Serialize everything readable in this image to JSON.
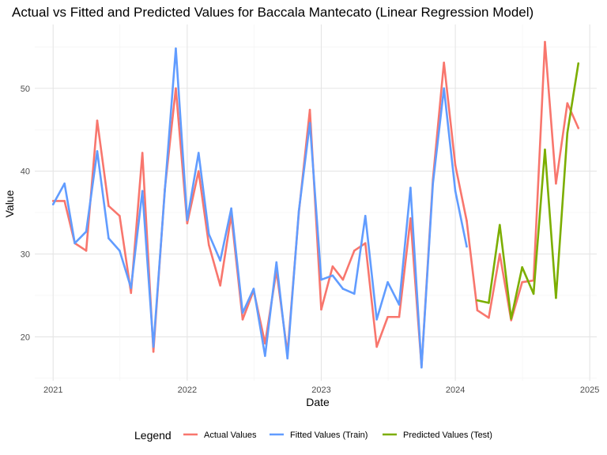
{
  "chart_data": {
    "type": "line",
    "title": "Actual vs Fitted and Predicted Values for Baccala Mantecato (Linear Regression Model)",
    "xlabel": "Date",
    "ylabel": "Value",
    "x_ticks": [
      "2021",
      "2022",
      "2023",
      "2024",
      "2025"
    ],
    "y_ticks": [
      20,
      30,
      40,
      50
    ],
    "xlim": [
      "2020-11-12",
      "2025-01-20"
    ],
    "ylim": [
      14.7,
      57.7
    ],
    "grid": true,
    "legend": {
      "title": "Legend",
      "position": "bottom"
    },
    "series": [
      {
        "name": "Actual Values",
        "color": "#F8766D",
        "x": [
          "2021-01-01",
          "2021-02-01",
          "2021-03-01",
          "2021-04-01",
          "2021-05-01",
          "2021-06-01",
          "2021-07-01",
          "2021-08-01",
          "2021-09-01",
          "2021-10-01",
          "2021-11-01",
          "2021-12-01",
          "2022-01-01",
          "2022-02-01",
          "2022-03-01",
          "2022-04-01",
          "2022-05-01",
          "2022-06-01",
          "2022-07-01",
          "2022-08-01",
          "2022-09-01",
          "2022-10-01",
          "2022-11-01",
          "2022-12-01",
          "2023-01-01",
          "2023-02-01",
          "2023-03-01",
          "2023-04-01",
          "2023-05-01",
          "2023-06-01",
          "2023-07-01",
          "2023-08-01",
          "2023-09-01",
          "2023-10-01",
          "2023-11-01",
          "2023-12-01",
          "2024-01-01",
          "2024-02-01",
          "2024-03-01",
          "2024-04-01",
          "2024-05-01",
          "2024-06-01",
          "2024-07-01",
          "2024-08-01",
          "2024-09-01",
          "2024-10-01",
          "2024-11-01",
          "2024-12-01"
        ],
        "values": [
          36.4,
          36.4,
          31.3,
          30.4,
          46.1,
          35.8,
          34.6,
          25.3,
          42.2,
          18.2,
          37.8,
          50.0,
          33.7,
          40.0,
          31.1,
          26.2,
          34.7,
          22.1,
          25.6,
          19.2,
          28.0,
          18.0,
          35.0,
          47.4,
          23.3,
          28.5,
          26.9,
          30.4,
          31.3,
          18.8,
          22.4,
          22.4,
          34.3,
          16.4,
          39.0,
          53.1,
          40.7,
          34.0,
          23.2,
          22.3,
          30.0,
          22.0,
          26.6,
          26.8,
          55.6,
          38.5,
          48.2,
          45.2
        ]
      },
      {
        "name": "Fitted Values (Train)",
        "color": "#619CFF",
        "x": [
          "2021-01-01",
          "2021-02-01",
          "2021-03-01",
          "2021-04-01",
          "2021-05-01",
          "2021-06-01",
          "2021-07-01",
          "2021-08-01",
          "2021-09-01",
          "2021-10-01",
          "2021-11-01",
          "2021-12-01",
          "2022-01-01",
          "2022-02-01",
          "2022-03-01",
          "2022-04-01",
          "2022-05-01",
          "2022-06-01",
          "2022-07-01",
          "2022-08-01",
          "2022-09-01",
          "2022-10-01",
          "2022-11-01",
          "2022-12-01",
          "2023-01-01",
          "2023-02-01",
          "2023-03-01",
          "2023-04-01",
          "2023-05-01",
          "2023-06-01",
          "2023-07-01",
          "2023-08-01",
          "2023-09-01",
          "2023-10-01",
          "2023-11-01",
          "2023-12-01",
          "2024-01-01",
          "2024-02-01"
        ],
        "values": [
          36.0,
          38.5,
          31.3,
          32.7,
          42.4,
          31.9,
          30.4,
          25.9,
          37.6,
          18.8,
          37.6,
          54.8,
          34.1,
          42.2,
          32.4,
          29.2,
          35.5,
          22.9,
          25.8,
          17.7,
          29.0,
          17.4,
          35.2,
          45.8,
          26.9,
          27.4,
          25.8,
          25.2,
          34.6,
          22.1,
          26.6,
          23.9,
          38.0,
          16.3,
          38.5,
          50.0,
          37.6,
          30.9
        ]
      },
      {
        "name": "Predicted Values (Test)",
        "color": "#7CAE00",
        "x": [
          "2024-03-01",
          "2024-04-01",
          "2024-05-01",
          "2024-06-01",
          "2024-07-01",
          "2024-08-01",
          "2024-09-01",
          "2024-10-01",
          "2024-11-01",
          "2024-12-01"
        ],
        "values": [
          24.4,
          24.1,
          33.5,
          22.2,
          28.4,
          25.2,
          42.6,
          24.7,
          44.6,
          53.0
        ]
      }
    ]
  }
}
